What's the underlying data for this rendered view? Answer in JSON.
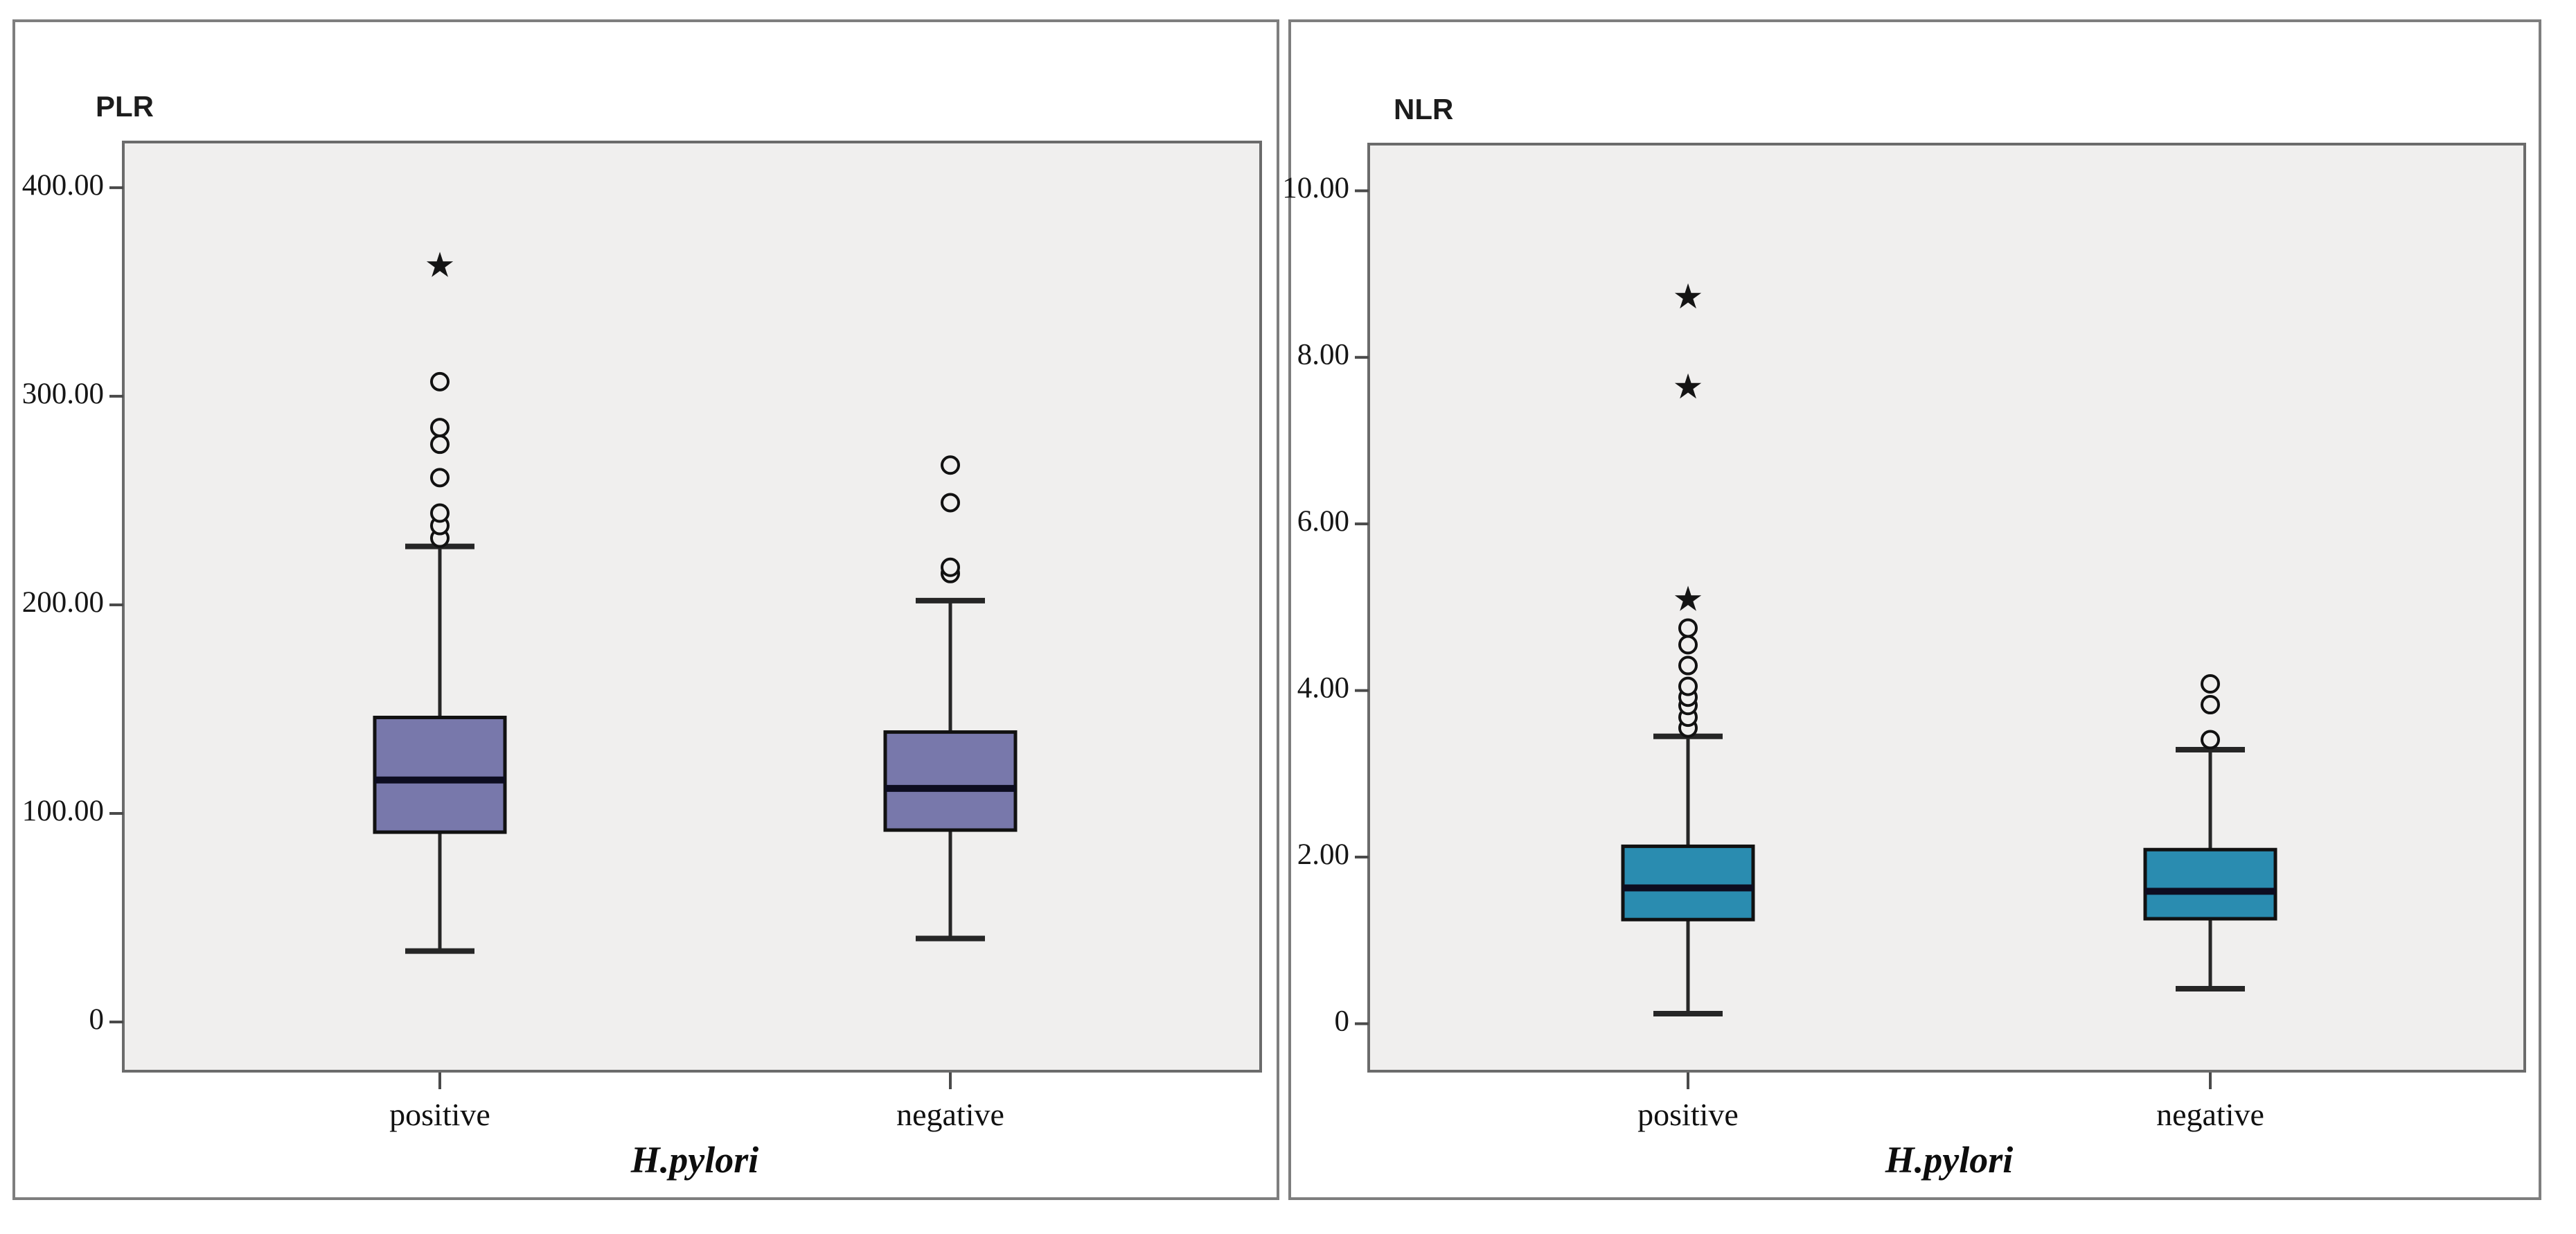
{
  "figure": {
    "background": "#ffffff",
    "border_color": "#7e7e7e",
    "plot_bg": "#f0efee",
    "ink_color": "#1a1a1a"
  },
  "chart_data": [
    {
      "type": "boxplot",
      "title": "PLR",
      "xlabel": "H.pylori",
      "categories": [
        "positive",
        "negative"
      ],
      "ylim": [
        -23.6,
        421.9
      ],
      "grid": false,
      "yticks": [
        {
          "value": 0,
          "label": "0"
        },
        {
          "value": 100,
          "label": "100.00"
        },
        {
          "value": 200,
          "label": "200.00"
        },
        {
          "value": 300,
          "label": "300.00"
        },
        {
          "value": 400,
          "label": "400.00"
        }
      ],
      "box_fill": "#7878ab",
      "series": [
        {
          "category": "positive",
          "whisker_low": 34,
          "q1": 91,
          "median": 116,
          "q3": 146,
          "whisker_high": 228,
          "outliers": [
            232,
            238,
            244,
            261,
            277,
            285,
            307
          ],
          "extremes": [
            363
          ]
        },
        {
          "category": "negative",
          "whisker_low": 40,
          "q1": 92,
          "median": 112,
          "q3": 139,
          "whisker_high": 202,
          "outliers": [
            215,
            218,
            249,
            267
          ],
          "extremes": []
        }
      ]
    },
    {
      "type": "boxplot",
      "title": "NLR",
      "xlabel": "H.pylori",
      "categories": [
        "positive",
        "negative"
      ],
      "ylim": [
        -0.57,
        10.56
      ],
      "grid": false,
      "yticks": [
        {
          "value": 0,
          "label": "0"
        },
        {
          "value": 2,
          "label": "2.00"
        },
        {
          "value": 4,
          "label": "4.00"
        },
        {
          "value": 6,
          "label": "6.00"
        },
        {
          "value": 8,
          "label": "8.00"
        },
        {
          "value": 10,
          "label": "10.00"
        }
      ],
      "box_fill": "#2a8cb0",
      "series": [
        {
          "category": "positive",
          "whisker_low": 0.12,
          "q1": 1.25,
          "median": 1.63,
          "q3": 2.13,
          "whisker_high": 3.45,
          "outliers": [
            3.55,
            3.68,
            3.82,
            3.92,
            4.05,
            4.3,
            4.55,
            4.75
          ],
          "extremes": [
            5.1,
            7.65,
            8.73
          ]
        },
        {
          "category": "negative",
          "whisker_low": 0.42,
          "q1": 1.26,
          "median": 1.59,
          "q3": 2.09,
          "whisker_high": 3.29,
          "outliers": [
            3.41,
            3.83,
            4.08
          ],
          "extremes": []
        }
      ]
    }
  ]
}
